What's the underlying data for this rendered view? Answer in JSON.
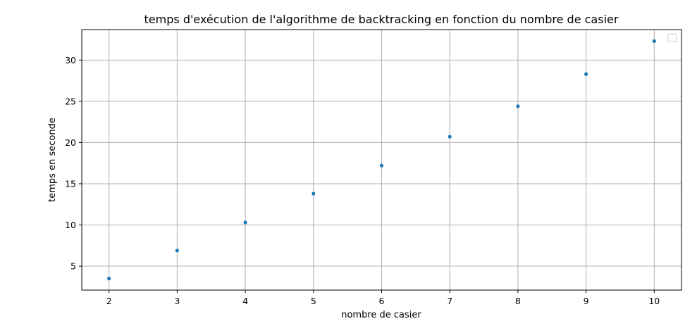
{
  "chart_data": {
    "type": "scatter",
    "title": "temps d'exécution de l'algorithme de backtracking en fonction du nombre de casier",
    "xlabel": "nombre de casier",
    "ylabel": "temps en seconde",
    "x": [
      2,
      3,
      4,
      5,
      6,
      7,
      8,
      9,
      10
    ],
    "series": [
      {
        "values": [
          3.5,
          6.9,
          10.3,
          13.8,
          17.2,
          20.7,
          24.4,
          28.3,
          32.3
        ],
        "color": "#1f77b4"
      }
    ],
    "xlim": [
      1.6,
      10.4
    ],
    "ylim": [
      2.1,
      33.7
    ],
    "xticks": [
      2,
      3,
      4,
      5,
      6,
      7,
      8,
      9,
      10
    ],
    "yticks": [
      5,
      10,
      15,
      20,
      25,
      30
    ],
    "grid": true,
    "legend": {
      "placement": "top-right",
      "entries": []
    }
  }
}
